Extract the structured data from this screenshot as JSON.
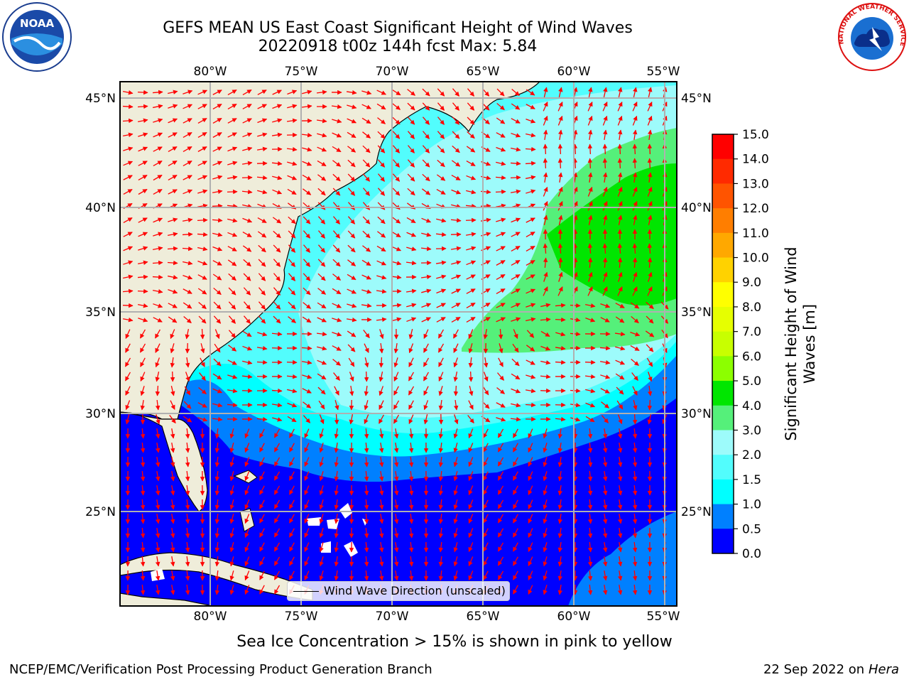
{
  "title": {
    "line1": "GEFS MEAN US East Coast Significant Height of Wind Waves",
    "line2": "20220918 t00z 144h fcst   Max: 5.84"
  },
  "map": {
    "lon_ticks": [
      "80°W",
      "75°W",
      "70°W",
      "65°W",
      "60°W",
      "55°W"
    ],
    "lat_ticks": [
      "45°N",
      "40°N",
      "35°N",
      "30°N",
      "25°N"
    ],
    "legend_label": "Wind Wave Direction (unscaled)",
    "arrow_color": "#ff0000",
    "land_color": "#efedda",
    "grid_color": "#b0b0b0"
  },
  "colorbar": {
    "label": "Significant Height of Wind Waves [m]",
    "ticks": [
      "15.0",
      "14.0",
      "13.0",
      "12.0",
      "11.0",
      "10.0",
      "9.0",
      "8.0",
      "7.0",
      "6.0",
      "5.0",
      "4.0",
      "3.0",
      "2.0",
      "1.5",
      "1.0",
      "0.5",
      "0.0"
    ],
    "colors": [
      "#ff0000",
      "#ff2a00",
      "#ff5400",
      "#ff7e00",
      "#ffa800",
      "#ffd200",
      "#ffff00",
      "#e6ff00",
      "#c8ff00",
      "#8cff00",
      "#00e600",
      "#55f07a",
      "#9dfbfb",
      "#52fdfd",
      "#00ffff",
      "#0080ff",
      "#0000ff"
    ]
  },
  "note": "Sea Ice Concentration > 15% is shown in pink to yellow",
  "footer": {
    "left": "NCEP/EMC/Verification Post Processing Product Generation Branch",
    "right_date": "22 Sep 2022 on",
    "right_host": "Hera"
  },
  "logos": {
    "noaa_text": "NOAA",
    "nws_text": "NATIONAL WEATHER SERVICE"
  }
}
